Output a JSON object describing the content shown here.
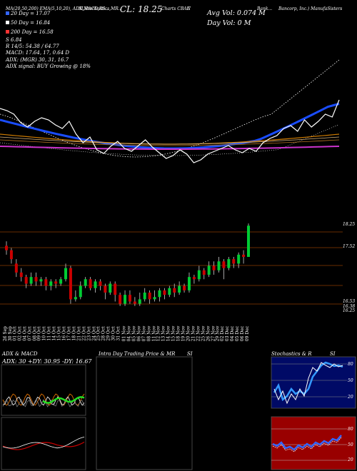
{
  "header": {
    "line1": "MA(20,50,200) EMA(5,10,20), ADX,MACD,RS...",
    "line1b": "SI,Stochastics,MR..",
    "close_label": "CL: 18.25",
    "symbol_label": "Charts CBAN",
    "symbol_suffix": "C",
    "company": "Bank...",
    "company_right": "Bancorp, Inc.) ManufaSisters",
    "avg_vol": "Avg Vol: 0.074  M",
    "day_vol": "Day Vol: 0  M",
    "ma20": "20 Day = 17.07",
    "ma50": "50 Day = 16.84",
    "ma200": "200 Day = 16.58",
    "s_line": "S                 6.84",
    "r_line": "R     14/5: 54.38  / 64.77",
    "macd_line": "MACD: 17.64, 17, 0.64  D",
    "adx_line": "ADX:                  (MGR) 30, 31, 16.7",
    "adx_signal": "ADX signal:                        BUY Growing @ 18%"
  },
  "colors": {
    "ma20": "#3366ff",
    "ma50": "#ffffff",
    "ma200": "#ff3333",
    "up": "#00cc33",
    "down": "#cc0000",
    "price_line": "#8b3a00",
    "ema_white": "#ffffff",
    "ema_blue": "#1a4dff",
    "ema_orange": "#cc7a00",
    "ema_magenta": "#cc33cc"
  },
  "chart_data": [
    {
      "type": "candlestick",
      "price_levels": [
        "18.25",
        "17.52",
        "16.53",
        "16.38",
        "16.25"
      ],
      "x_dates": [
        "26 Sep",
        "30 Sep",
        "01 Oct",
        "02 Oct",
        "04 Oct",
        "07 Oct",
        "08 Oct",
        "09 Oct",
        "10 Oct",
        "11 Oct",
        "14 Oct",
        "15 Oct",
        "16 Oct",
        "17 Oct",
        "18 Oct",
        "21 Oct",
        "22 Oct",
        "23 Oct",
        "24 Oct",
        "25 Oct",
        "28 Oct",
        "29 Oct",
        "30 Oct",
        "31 Oct",
        "01 Nov",
        "04 Nov",
        "05 Nov",
        "06 Nov",
        "07 Nov",
        "08 Nov",
        "11 Nov",
        "12 Nov",
        "13 Nov",
        "14 Nov",
        "15 Nov",
        "18 Nov",
        "19 Nov",
        "20 Nov",
        "21 Nov",
        "22 Nov",
        "25 Nov",
        "26 Nov",
        "27 Nov",
        "29 Nov",
        "02 Dec",
        "03 Dec",
        "04 Dec",
        "05 Dec",
        "06 Dec",
        "09 Dec"
      ],
      "candles": [
        {
          "o": 17.8,
          "c": 17.7,
          "h": 17.9,
          "l": 17.6
        },
        {
          "o": 17.7,
          "c": 17.5,
          "h": 17.75,
          "l": 17.4
        },
        {
          "o": 17.4,
          "c": 17.2,
          "h": 17.5,
          "l": 17.1
        },
        {
          "o": 17.2,
          "c": 17.1,
          "h": 17.3,
          "l": 17.0
        },
        {
          "o": 17.1,
          "c": 16.95,
          "h": 17.15,
          "l": 16.85
        },
        {
          "o": 16.95,
          "c": 17.1,
          "h": 17.2,
          "l": 16.9
        },
        {
          "o": 17.1,
          "c": 17.0,
          "h": 17.2,
          "l": 16.9
        },
        {
          "o": 17.0,
          "c": 17.05,
          "h": 17.1,
          "l": 16.9
        },
        {
          "o": 17.05,
          "c": 16.9,
          "h": 17.1,
          "l": 16.8
        },
        {
          "o": 16.9,
          "c": 17.0,
          "h": 17.05,
          "l": 16.8
        },
        {
          "o": 17.0,
          "c": 16.95,
          "h": 17.05,
          "l": 16.85
        },
        {
          "o": 16.95,
          "c": 17.05,
          "h": 17.1,
          "l": 16.9
        },
        {
          "o": 17.05,
          "c": 17.3,
          "h": 17.4,
          "l": 17.0
        },
        {
          "o": 17.3,
          "c": 16.6,
          "h": 17.35,
          "l": 16.5
        },
        {
          "o": 16.6,
          "c": 16.65,
          "h": 16.8,
          "l": 16.55
        },
        {
          "o": 16.65,
          "c": 16.9,
          "h": 17.0,
          "l": 16.6
        },
        {
          "o": 16.9,
          "c": 17.05,
          "h": 17.1,
          "l": 16.85
        },
        {
          "o": 17.05,
          "c": 16.85,
          "h": 17.1,
          "l": 16.8
        },
        {
          "o": 16.85,
          "c": 17.0,
          "h": 17.05,
          "l": 16.75
        },
        {
          "o": 17.0,
          "c": 16.9,
          "h": 17.05,
          "l": 16.8
        },
        {
          "o": 16.9,
          "c": 16.75,
          "h": 16.95,
          "l": 16.6
        },
        {
          "o": 16.75,
          "c": 16.95,
          "h": 17.0,
          "l": 16.7
        },
        {
          "o": 16.95,
          "c": 16.7,
          "h": 17.0,
          "l": 16.55
        },
        {
          "o": 16.7,
          "c": 16.5,
          "h": 16.75,
          "l": 16.45
        },
        {
          "o": 16.5,
          "c": 16.7,
          "h": 16.8,
          "l": 16.45
        },
        {
          "o": 16.7,
          "c": 16.55,
          "h": 16.8,
          "l": 16.5
        },
        {
          "o": 16.55,
          "c": 16.5,
          "h": 16.65,
          "l": 16.45
        },
        {
          "o": 16.5,
          "c": 16.6,
          "h": 16.75,
          "l": 16.45
        },
        {
          "o": 16.6,
          "c": 16.75,
          "h": 16.85,
          "l": 16.55
        },
        {
          "o": 16.75,
          "c": 16.6,
          "h": 16.8,
          "l": 16.5
        },
        {
          "o": 16.6,
          "c": 16.65,
          "h": 16.8,
          "l": 16.55
        },
        {
          "o": 16.65,
          "c": 16.8,
          "h": 16.85,
          "l": 16.55
        },
        {
          "o": 16.8,
          "c": 16.7,
          "h": 16.85,
          "l": 16.6
        },
        {
          "o": 16.7,
          "c": 16.85,
          "h": 16.9,
          "l": 16.65
        },
        {
          "o": 16.85,
          "c": 16.75,
          "h": 16.95,
          "l": 16.65
        },
        {
          "o": 16.75,
          "c": 16.9,
          "h": 17.0,
          "l": 16.7
        },
        {
          "o": 16.9,
          "c": 16.8,
          "h": 16.95,
          "l": 16.75
        },
        {
          "o": 16.8,
          "c": 17.1,
          "h": 17.2,
          "l": 16.75
        },
        {
          "o": 17.1,
          "c": 17.05,
          "h": 17.15,
          "l": 16.95
        },
        {
          "o": 17.05,
          "c": 17.25,
          "h": 17.35,
          "l": 17.0
        },
        {
          "o": 17.25,
          "c": 17.15,
          "h": 17.3,
          "l": 17.05
        },
        {
          "o": 17.15,
          "c": 17.35,
          "h": 17.45,
          "l": 17.1
        },
        {
          "o": 17.35,
          "c": 17.25,
          "h": 17.45,
          "l": 17.15
        },
        {
          "o": 17.25,
          "c": 17.45,
          "h": 17.55,
          "l": 17.2
        },
        {
          "o": 17.45,
          "c": 17.3,
          "h": 17.5,
          "l": 17.05
        },
        {
          "o": 17.3,
          "c": 17.5,
          "h": 17.55,
          "l": 17.25
        },
        {
          "o": 17.5,
          "c": 17.4,
          "h": 17.55,
          "l": 17.3
        },
        {
          "o": 17.4,
          "c": 17.6,
          "h": 17.65,
          "l": 17.3
        },
        {
          "o": 17.6,
          "c": 17.55,
          "h": 17.7,
          "l": 17.4
        },
        {
          "o": 17.55,
          "c": 18.25,
          "h": 18.3,
          "l": 17.55
        }
      ]
    }
  ],
  "panels": {
    "adx_title": "ADX  & MACD",
    "adx_values": "ADX: 30  +DY: 30.95  -DY: 16.67",
    "intra_title": "Intra Day Trading Price  & MR",
    "intra_si": "SI",
    "stoch_title": "Stochastics & R",
    "stoch_si": "SI",
    "stoch_levels": [
      "80",
      "50",
      "20"
    ],
    "rsi_levels": [
      "80",
      "50",
      "20"
    ]
  }
}
